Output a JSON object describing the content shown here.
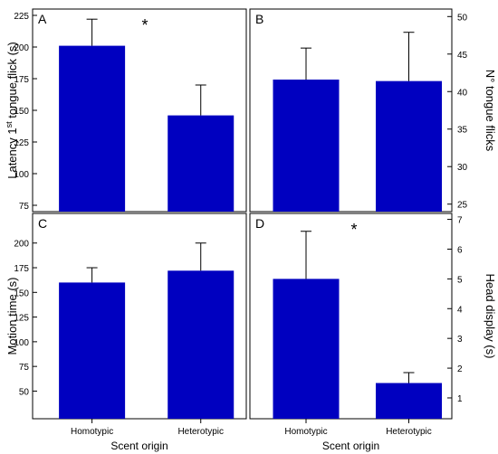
{
  "figure": {
    "bar_color": "#0000C0",
    "axis_color": "#000000",
    "panels_layout": "2x2 grid"
  },
  "chart_data": [
    {
      "panel_label": "A",
      "type": "bar",
      "categories": [
        "Homotypic",
        "Heterotypic"
      ],
      "values": [
        201,
        146
      ],
      "errors": [
        21,
        24
      ],
      "ylabel_main": "Latency 1",
      "ylabel_sup": "st",
      "ylabel_rest": " tongue flick (s)",
      "ylim": [
        70,
        230
      ],
      "yticks": [
        75,
        100,
        125,
        150,
        175,
        200,
        225
      ],
      "y_axis_side": "left",
      "significance": "*",
      "show_x_tick_labels": false,
      "xlabel": ""
    },
    {
      "panel_label": "B",
      "type": "bar",
      "categories": [
        "Homotypic",
        "Heterotypic"
      ],
      "values": [
        41.6,
        41.4
      ],
      "errors": [
        4.2,
        6.5
      ],
      "ylabel_main": "N° tongue flicks",
      "ylabel_sup": "",
      "ylabel_rest": "",
      "ylim": [
        24,
        51
      ],
      "yticks": [
        25,
        30,
        35,
        40,
        45,
        50
      ],
      "y_axis_side": "right",
      "significance": "",
      "show_x_tick_labels": false,
      "xlabel": ""
    },
    {
      "panel_label": "C",
      "type": "bar",
      "categories": [
        "Homotypic",
        "Heterotypic"
      ],
      "values": [
        160,
        172
      ],
      "errors": [
        15,
        28
      ],
      "ylabel_main": "Motion time (s)",
      "ylabel_sup": "",
      "ylabel_rest": "",
      "ylim": [
        22,
        230
      ],
      "yticks": [
        50,
        75,
        100,
        125,
        150,
        175,
        200
      ],
      "y_axis_side": "left",
      "significance": "",
      "show_x_tick_labels": true,
      "xlabel": "Scent origin"
    },
    {
      "panel_label": "D",
      "type": "bar",
      "categories": [
        "Homotypic",
        "Heterotypic"
      ],
      "values": [
        5.0,
        1.5
      ],
      "errors": [
        1.6,
        0.35
      ],
      "ylabel_main": "Head display (s)",
      "ylabel_sup": "",
      "ylabel_rest": "",
      "ylim": [
        0.3,
        7.2
      ],
      "yticks": [
        1,
        2,
        3,
        4,
        5,
        6,
        7
      ],
      "y_axis_side": "right",
      "significance": "*",
      "show_x_tick_labels": true,
      "xlabel": "Scent origin"
    }
  ]
}
